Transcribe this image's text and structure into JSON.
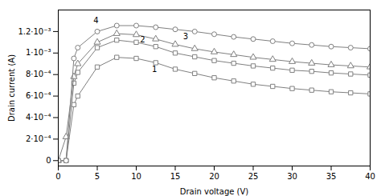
{
  "chart_data": {
    "type": "line",
    "xlabel": "Drain voltage (V)",
    "ylabel": "Drain current (A)",
    "xlim": [
      0,
      40
    ],
    "ylim": [
      -5e-05,
      0.0014
    ],
    "xticks": [
      0,
      5,
      10,
      15,
      20,
      25,
      30,
      35,
      40
    ],
    "yticks": [
      0,
      {
        "value": 0.0002,
        "label": "2·10⁻⁴"
      },
      {
        "value": 0.0004,
        "label": "4·10⁻⁴"
      },
      {
        "value": 0.0006,
        "label": "6·10⁻⁴"
      },
      {
        "value": 0.0008,
        "label": "8·10⁻⁴"
      },
      {
        "value": 0.001,
        "label": "1·10⁻³"
      },
      {
        "value": 0.0012,
        "label": "1.2·10⁻³"
      }
    ],
    "grid": false,
    "x": [
      0,
      1,
      2,
      2.5,
      5,
      7.5,
      10,
      12.5,
      15,
      17.5,
      20,
      22.5,
      25,
      27.5,
      30,
      32.5,
      35,
      37.5,
      40
    ],
    "series": [
      {
        "name": "1",
        "color": "#808080",
        "marker": "square",
        "values": [
          0,
          0,
          0.00052,
          0.0006,
          0.00087,
          0.00096,
          0.00095,
          0.00091,
          0.00085,
          0.00081,
          0.00077,
          0.00074,
          0.00071,
          0.00069,
          0.00067,
          0.000655,
          0.00064,
          0.00063,
          0.00062
        ]
      },
      {
        "name": "2",
        "color": "#808080",
        "marker": "square",
        "values": [
          0,
          0,
          0.00072,
          0.00082,
          0.00105,
          0.00112,
          0.0011,
          0.00106,
          0.001,
          0.000965,
          0.00093,
          0.000905,
          0.00088,
          0.00086,
          0.00084,
          0.00083,
          0.000815,
          0.000805,
          0.000795
        ]
      },
      {
        "name": "3",
        "color": "#808080",
        "marker": "triangle",
        "values": [
          0,
          0.00022,
          0.00078,
          0.0009,
          0.0011,
          0.00118,
          0.00117,
          0.00113,
          0.00108,
          0.00104,
          0.00101,
          0.000985,
          0.00096,
          0.00094,
          0.00092,
          0.000905,
          0.00089,
          0.00088,
          0.00087
        ]
      },
      {
        "name": "4",
        "color": "#808080",
        "marker": "circle",
        "values": [
          0,
          0,
          0.00095,
          0.00105,
          0.0012,
          0.001255,
          0.001255,
          0.00124,
          0.00122,
          0.0012,
          0.001175,
          0.00115,
          0.00113,
          0.00111,
          0.00109,
          0.001075,
          0.00106,
          0.00105,
          0.00104
        ]
      }
    ],
    "annotations": [
      {
        "text": "1",
        "x": 12.0,
        "y": 0.0008
      },
      {
        "text": "2",
        "x": 10.5,
        "y": 0.00108
      },
      {
        "text": "3",
        "x": 16.0,
        "y": 0.00111
      },
      {
        "text": "4",
        "x": 4.5,
        "y": 0.00126
      }
    ]
  }
}
